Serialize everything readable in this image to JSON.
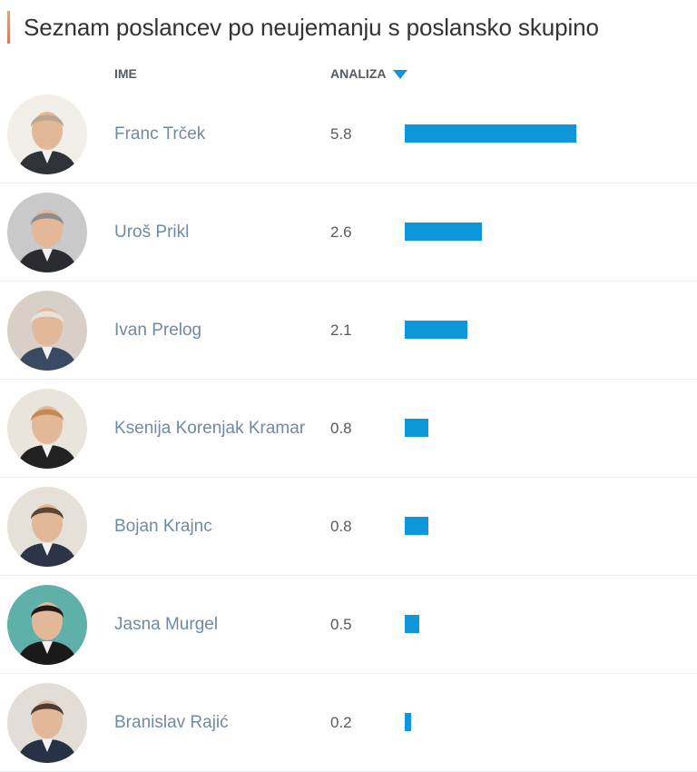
{
  "title": "Seznam poslancev po neujemanju s poslansko skupino",
  "columns": {
    "name": "IME",
    "analysis": "ANALIZA"
  },
  "max_value": 6.0,
  "accent_color": "#0d97d8",
  "rows": [
    {
      "name": "Franc Trček",
      "value": "5.8",
      "num": 5.8,
      "bg": "#f2efe9",
      "suit": "#2f3338",
      "hair": "#b9a793"
    },
    {
      "name": "Uroš Prikl",
      "value": "2.6",
      "num": 2.6,
      "bg": "#c9c9c9",
      "suit": "#2a2c30",
      "hair": "#8d8d8d"
    },
    {
      "name": "Ivan Prelog",
      "value": "2.1",
      "num": 2.1,
      "bg": "#d8d0c6",
      "suit": "#3b4a63",
      "hair": "#e6e3de"
    },
    {
      "name": "Ksenija Korenjak Kramar",
      "value": "0.8",
      "num": 0.8,
      "bg": "#e9e4dc",
      "suit": "#222222",
      "hair": "#c48a52"
    },
    {
      "name": "Bojan Krajnc",
      "value": "0.8",
      "num": 0.8,
      "bg": "#e6e1d8",
      "suit": "#2b3547",
      "hair": "#5a4636"
    },
    {
      "name": "Jasna Murgel",
      "value": "0.5",
      "num": 0.5,
      "bg": "#5fb0a8",
      "suit": "#1a1a1a",
      "hair": "#231a15"
    },
    {
      "name": "Branislav Rajić",
      "value": "0.2",
      "num": 0.2,
      "bg": "#e2ddd6",
      "suit": "#273245",
      "hair": "#4a3c33"
    }
  ]
}
